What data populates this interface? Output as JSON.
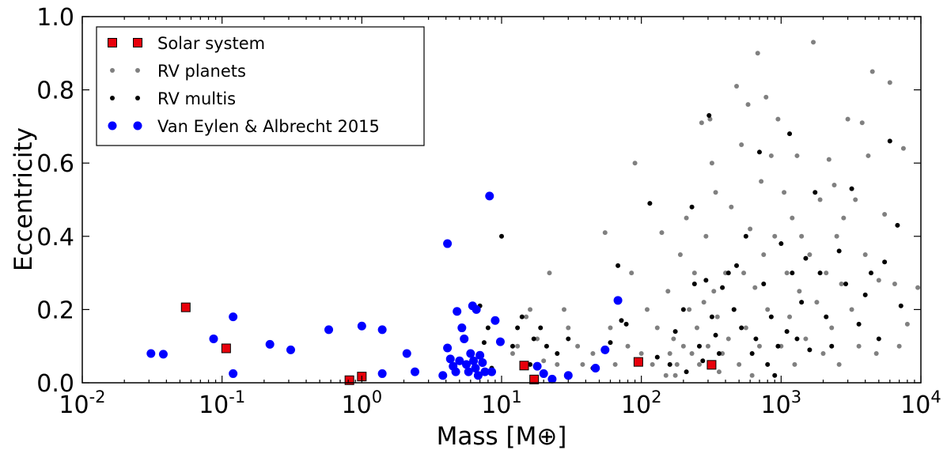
{
  "chart_data": {
    "type": "scatter",
    "title": "",
    "xlabel": "Mass [M⊕]",
    "ylabel": "Eccentricity",
    "xscale": "log",
    "xlim": [
      0.01,
      10000
    ],
    "ylim": [
      0.0,
      1.0
    ],
    "x_ticks": [
      {
        "base": "10",
        "exp": "-2",
        "value": 0.01
      },
      {
        "base": "10",
        "exp": "-1",
        "value": 0.1
      },
      {
        "base": "10",
        "exp": "0",
        "value": 1
      },
      {
        "base": "10",
        "exp": "1",
        "value": 10
      },
      {
        "base": "10",
        "exp": "2",
        "value": 100
      },
      {
        "base": "10",
        "exp": "3",
        "value": 1000
      },
      {
        "base": "10",
        "exp": "4",
        "value": 10000
      }
    ],
    "y_ticks": [
      "0.0",
      "0.2",
      "0.4",
      "0.6",
      "0.8",
      "1.0"
    ],
    "grid": false,
    "legend_position": "top-left",
    "series": [
      {
        "name": "Solar system",
        "marker": "square",
        "color": "#e8000b",
        "edge": "#000000",
        "points": [
          [
            0.055,
            0.206
          ],
          [
            0.107,
            0.094
          ],
          [
            0.815,
            0.007
          ],
          [
            1.0,
            0.017
          ],
          [
            14.5,
            0.047
          ],
          [
            17.1,
            0.009
          ],
          [
            95.2,
            0.057
          ],
          [
            318,
            0.049
          ]
        ]
      },
      {
        "name": "RV planets",
        "marker": "dot",
        "color": "#808080",
        "points": [
          [
            12,
            0.08
          ],
          [
            13,
            0.1
          ],
          [
            15,
            0.18
          ],
          [
            16,
            0.2
          ],
          [
            18,
            0.12
          ],
          [
            20,
            0.06
          ],
          [
            22,
            0.3
          ],
          [
            25,
            0.05
          ],
          [
            28,
            0.2
          ],
          [
            30,
            0.15
          ],
          [
            35,
            0.1
          ],
          [
            38,
            0.05
          ],
          [
            45,
            0.08
          ],
          [
            55,
            0.41
          ],
          [
            60,
            0.15
          ],
          [
            65,
            0.05
          ],
          [
            80,
            0.1
          ],
          [
            85,
            0.3
          ],
          [
            90,
            0.6
          ],
          [
            100,
            0.08
          ],
          [
            110,
            0.2
          ],
          [
            120,
            0.05
          ],
          [
            130,
            0.15
          ],
          [
            140,
            0.41
          ],
          [
            150,
            0.02
          ],
          [
            155,
            0.25
          ],
          [
            160,
            0.08
          ],
          [
            170,
            0.12
          ],
          [
            175,
            0.02
          ],
          [
            180,
            0.05
          ],
          [
            190,
            0.35
          ],
          [
            200,
            0.1
          ],
          [
            210,
            0.45
          ],
          [
            220,
            0.2
          ],
          [
            230,
            0.08
          ],
          [
            240,
            0.3
          ],
          [
            250,
            0.15
          ],
          [
            260,
            0.05
          ],
          [
            270,
            0.71
          ],
          [
            280,
            0.22
          ],
          [
            290,
            0.4
          ],
          [
            300,
            0.1
          ],
          [
            310,
            0.72
          ],
          [
            320,
            0.6
          ],
          [
            330,
            0.25
          ],
          [
            340,
            0.52
          ],
          [
            350,
            0.18
          ],
          [
            360,
            0.03
          ],
          [
            380,
            0.08
          ],
          [
            400,
            0.3
          ],
          [
            420,
            0.12
          ],
          [
            440,
            0.48
          ],
          [
            460,
            0.2
          ],
          [
            480,
            0.81
          ],
          [
            500,
            0.05
          ],
          [
            520,
            0.65
          ],
          [
            540,
            0.3
          ],
          [
            560,
            0.15
          ],
          [
            580,
            0.76
          ],
          [
            600,
            0.42
          ],
          [
            620,
            0.02
          ],
          [
            650,
            0.26
          ],
          [
            680,
            0.9
          ],
          [
            700,
            0.1
          ],
          [
            720,
            0.55
          ],
          [
            750,
            0.35
          ],
          [
            780,
            0.78
          ],
          [
            800,
            0.2
          ],
          [
            850,
            0.62
          ],
          [
            900,
            0.4
          ],
          [
            950,
            0.72
          ],
          [
            1000,
            0.1
          ],
          [
            1050,
            0.52
          ],
          [
            1100,
            0.3
          ],
          [
            1150,
            0.18
          ],
          [
            1200,
            0.45
          ],
          [
            1250,
            0.05
          ],
          [
            1300,
            0.62
          ],
          [
            1350,
            0.25
          ],
          [
            1400,
            0.4
          ],
          [
            1500,
            0.12
          ],
          [
            1600,
            0.35
          ],
          [
            1700,
            0.93
          ],
          [
            1800,
            0.22
          ],
          [
            1900,
            0.5
          ],
          [
            2000,
            0.08
          ],
          [
            2100,
            0.3
          ],
          [
            2200,
            0.61
          ],
          [
            2300,
            0.15
          ],
          [
            2400,
            0.54
          ],
          [
            2500,
            0.4
          ],
          [
            2600,
            0.05
          ],
          [
            2700,
            0.27
          ],
          [
            2800,
            0.45
          ],
          [
            3000,
            0.72
          ],
          [
            3200,
            0.2
          ],
          [
            3400,
            0.5
          ],
          [
            3600,
            0.1
          ],
          [
            3800,
            0.71
          ],
          [
            4000,
            0.35
          ],
          [
            4200,
            0.62
          ],
          [
            4500,
            0.85
          ],
          [
            4800,
            0.08
          ],
          [
            5000,
            0.28
          ],
          [
            5500,
            0.46
          ],
          [
            6000,
            0.82
          ],
          [
            6500,
            0.27
          ],
          [
            7000,
            0.1
          ],
          [
            7500,
            0.64
          ],
          [
            8000,
            0.16
          ],
          [
            9500,
            0.26
          ]
        ]
      },
      {
        "name": "RV multis",
        "marker": "dot",
        "color": "#000000",
        "points": [
          [
            7,
            0.21
          ],
          [
            7.5,
            0.11
          ],
          [
            8,
            0.15
          ],
          [
            8.5,
            0.04
          ],
          [
            10,
            0.4
          ],
          [
            12,
            0.1
          ],
          [
            13,
            0.15
          ],
          [
            14,
            0.18
          ],
          [
            16,
            0.05
          ],
          [
            17,
            0.12
          ],
          [
            19,
            0.15
          ],
          [
            21,
            0.1
          ],
          [
            25,
            0.08
          ],
          [
            30,
            0.12
          ],
          [
            45,
            0.04
          ],
          [
            60,
            0.11
          ],
          [
            68,
            0.32
          ],
          [
            72,
            0.17
          ],
          [
            78,
            0.16
          ],
          [
            115,
            0.49
          ],
          [
            130,
            0.07
          ],
          [
            160,
            0.05
          ],
          [
            175,
            0.14
          ],
          [
            200,
            0.2
          ],
          [
            210,
            0.03
          ],
          [
            230,
            0.48
          ],
          [
            240,
            0.27
          ],
          [
            260,
            0.1
          ],
          [
            275,
            0.06
          ],
          [
            290,
            0.28
          ],
          [
            305,
            0.73
          ],
          [
            320,
            0.18
          ],
          [
            340,
            0.13
          ],
          [
            360,
            0.08
          ],
          [
            380,
            0.26
          ],
          [
            420,
            0.3
          ],
          [
            460,
            0.2
          ],
          [
            480,
            0.32
          ],
          [
            520,
            0.15
          ],
          [
            560,
            0.4
          ],
          [
            620,
            0.08
          ],
          [
            660,
            0.12
          ],
          [
            700,
            0.63
          ],
          [
            750,
            0.27
          ],
          [
            800,
            0.05
          ],
          [
            850,
            0.18
          ],
          [
            900,
            0.02
          ],
          [
            950,
            0.1
          ],
          [
            1000,
            0.38
          ],
          [
            1100,
            0.14
          ],
          [
            1150,
            0.68
          ],
          [
            1200,
            0.3
          ],
          [
            1300,
            0.12
          ],
          [
            1400,
            0.22
          ],
          [
            1500,
            0.34
          ],
          [
            1600,
            0.09
          ],
          [
            1750,
            0.52
          ],
          [
            1900,
            0.3
          ],
          [
            2100,
            0.18
          ],
          [
            2300,
            0.1
          ],
          [
            2600,
            0.36
          ],
          [
            2900,
            0.27
          ],
          [
            3200,
            0.53
          ],
          [
            3600,
            0.16
          ],
          [
            4000,
            0.24
          ],
          [
            4400,
            0.3
          ],
          [
            5000,
            0.12
          ],
          [
            5500,
            0.33
          ],
          [
            6000,
            0.66
          ],
          [
            6800,
            0.43
          ],
          [
            7200,
            0.21
          ]
        ]
      },
      {
        "name": "Van Eylen & Albrecht 2015",
        "marker": "circle",
        "color": "#0000ff",
        "points": [
          [
            0.031,
            0.08
          ],
          [
            0.038,
            0.078
          ],
          [
            0.087,
            0.12
          ],
          [
            0.12,
            0.18
          ],
          [
            0.12,
            0.025
          ],
          [
            0.22,
            0.105
          ],
          [
            0.31,
            0.09
          ],
          [
            0.58,
            0.145
          ],
          [
            1.0,
            0.155
          ],
          [
            1.4,
            0.145
          ],
          [
            1.4,
            0.025
          ],
          [
            2.1,
            0.08
          ],
          [
            2.4,
            0.03
          ],
          [
            3.8,
            0.02
          ],
          [
            4.1,
            0.38
          ],
          [
            4.1,
            0.095
          ],
          [
            4.3,
            0.065
          ],
          [
            4.5,
            0.045
          ],
          [
            4.7,
            0.03
          ],
          [
            4.8,
            0.195
          ],
          [
            5.0,
            0.06
          ],
          [
            5.2,
            0.15
          ],
          [
            5.4,
            0.12
          ],
          [
            5.6,
            0.05
          ],
          [
            5.8,
            0.03
          ],
          [
            6.0,
            0.08
          ],
          [
            6.2,
            0.21
          ],
          [
            6.3,
            0.06
          ],
          [
            6.5,
            0.04
          ],
          [
            6.6,
            0.2
          ],
          [
            6.8,
            0.02
          ],
          [
            7.0,
            0.075
          ],
          [
            7.3,
            0.055
          ],
          [
            7.6,
            0.03
          ],
          [
            8.2,
            0.51
          ],
          [
            8.5,
            0.03
          ],
          [
            9.0,
            0.17
          ],
          [
            9.8,
            0.112
          ],
          [
            18,
            0.045
          ],
          [
            20,
            0.025
          ],
          [
            23,
            0.01
          ],
          [
            30,
            0.02
          ],
          [
            47,
            0.04
          ],
          [
            55,
            0.09
          ],
          [
            68,
            0.225
          ]
        ]
      }
    ]
  }
}
